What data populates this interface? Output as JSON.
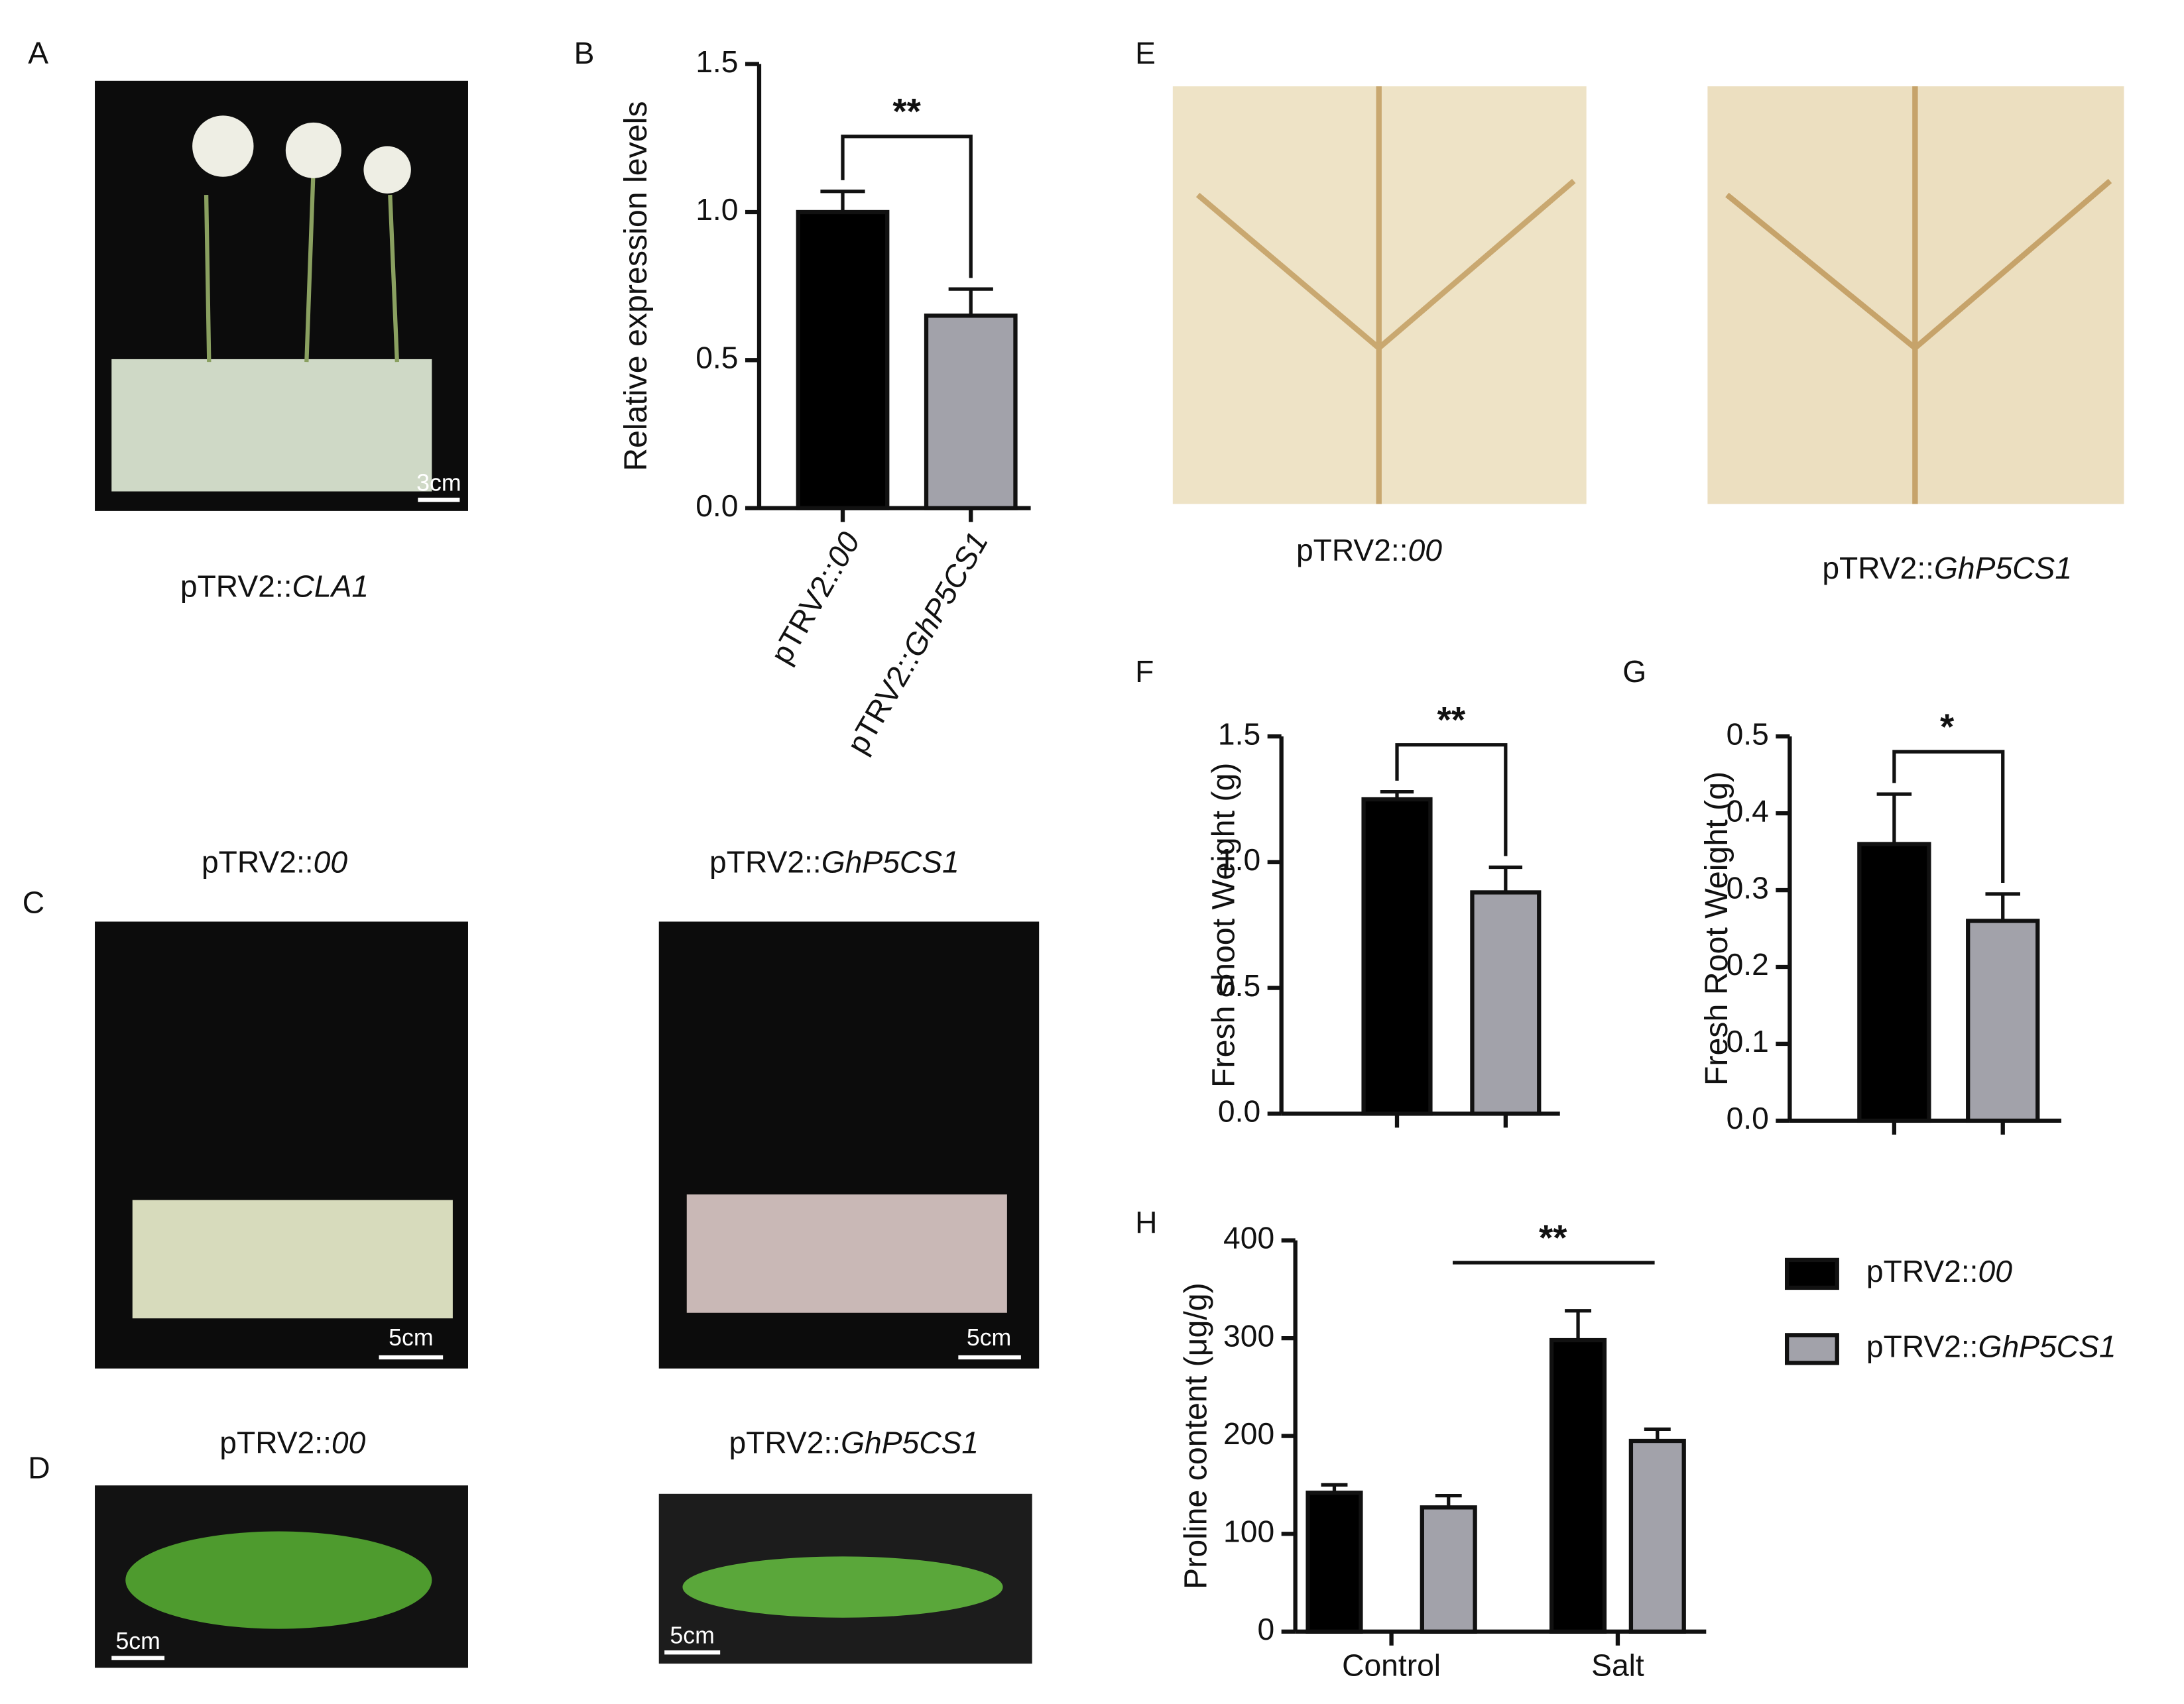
{
  "panels": [
    "A",
    "B",
    "E",
    "C",
    "D",
    "F",
    "G",
    "H"
  ],
  "captions": {
    "a": "pTRV2::CLA1",
    "e1": "pTRV2::00",
    "e2": "pTRV2::GhP5CS1",
    "c1": "pTRV2::00",
    "c2": "pTRV2::GhP5CS1",
    "d1": "pTRV2::00",
    "d2": "pTRV2::GhP5CS1"
  },
  "scalebars": {
    "a": "3cm",
    "c1": "5cm",
    "c2": "5cm",
    "d1": "5cm",
    "d2": "5cm"
  },
  "chart_data": [
    {
      "type": "bar",
      "y_label": "Relative expression levels",
      "categories": [
        "pTRV2::00",
        "pTRV2::GhP5CS1"
      ],
      "values": [
        1.0,
        0.65
      ],
      "errors": [
        0.07,
        0.09
      ],
      "colors": [
        "#000000",
        "#a2a2aa"
      ],
      "significance": "**",
      "ylim": [
        0,
        1.5
      ],
      "yticks": [
        {
          "value": 0,
          "label": "0.0"
        },
        0.5,
        {
          "value": 1,
          "label": "1.0"
        },
        1.5
      ]
    },
    {
      "type": "bar",
      "y_label": "Fresh shoot Weight (g)",
      "categories": [
        null,
        null
      ],
      "values": [
        1.25,
        0.88
      ],
      "errors": [
        0.03,
        0.1
      ],
      "colors": [
        "#000000",
        "#a2a2aa"
      ],
      "significance": "**",
      "ylim": [
        0,
        1.5
      ],
      "yticks": [
        {
          "value": 0,
          "label": "0.0"
        },
        0.5,
        {
          "value": 1,
          "label": "1.0"
        },
        1.5
      ]
    },
    {
      "type": "bar",
      "y_label": "Fresh Root Weight (g)",
      "categories": [
        null,
        null
      ],
      "values": [
        0.36,
        0.26
      ],
      "errors": [
        0.065,
        0.035
      ],
      "colors": [
        "#000000",
        "#a2a2aa"
      ],
      "significance": "*",
      "ylim": [
        0,
        0.5
      ],
      "yticks": [
        {
          "value": 0,
          "label": "0.0"
        },
        0.1,
        0.2,
        0.3,
        0.4,
        0.5
      ]
    },
    {
      "type": "grouped-bar",
      "y_label": "Proline content (μg/g)",
      "categories": [
        "Control",
        "Salt"
      ],
      "series": [
        {
          "name": "pTRV2::00",
          "color": "#000000",
          "values": [
            142,
            298
          ],
          "errors": [
            8,
            30
          ]
        },
        {
          "name": "pTRV2::GhP5CS1",
          "color": "#a2a2aa",
          "values": [
            127,
            195
          ],
          "errors": [
            12,
            12
          ]
        }
      ],
      "significance": "**",
      "ylim": [
        0,
        400
      ],
      "yticks": [
        0,
        100,
        200,
        300,
        400
      ]
    }
  ]
}
